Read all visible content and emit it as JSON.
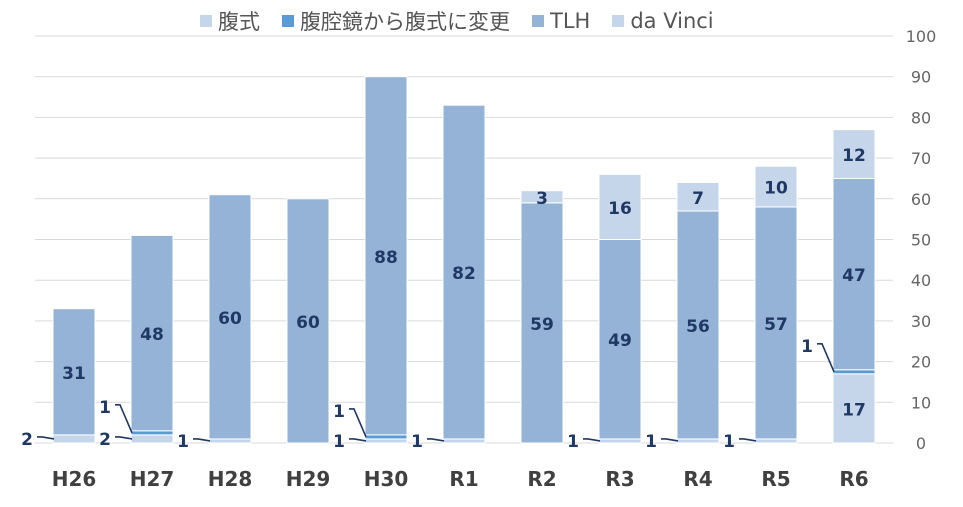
{
  "chart_data": {
    "type": "bar",
    "stacked": true,
    "categories": [
      "H26",
      "H27",
      "H28",
      "H29",
      "H30",
      "R1",
      "R2",
      "R3",
      "R4",
      "R5",
      "R6"
    ],
    "series": [
      {
        "name": "腹式",
        "color": "#c5d5ea",
        "values": [
          2,
          2,
          1,
          0,
          1,
          1,
          0,
          1,
          1,
          1,
          17
        ]
      },
      {
        "name": "腹腔鏡から腹式に変更",
        "color": "#5b9bd5",
        "values": [
          0,
          1,
          0,
          0,
          1,
          0,
          0,
          0,
          0,
          0,
          1
        ]
      },
      {
        "name": "TLH",
        "color": "#95b3d7",
        "values": [
          31,
          48,
          60,
          60,
          88,
          82,
          59,
          49,
          56,
          57,
          47
        ]
      },
      {
        "name": "da Vinci",
        "color": "#c5d5ea",
        "values": [
          0,
          0,
          0,
          0,
          0,
          0,
          3,
          16,
          7,
          10,
          12
        ]
      }
    ],
    "y_axis": {
      "min": 0,
      "max": 100,
      "step": 10,
      "position": "right"
    },
    "gridlines": true,
    "legend_position": "top"
  },
  "colors": {
    "label_dark": "#1f3864",
    "axis_text": "#666666",
    "gridline": "#d9d9d9",
    "category_text": "#404040"
  }
}
